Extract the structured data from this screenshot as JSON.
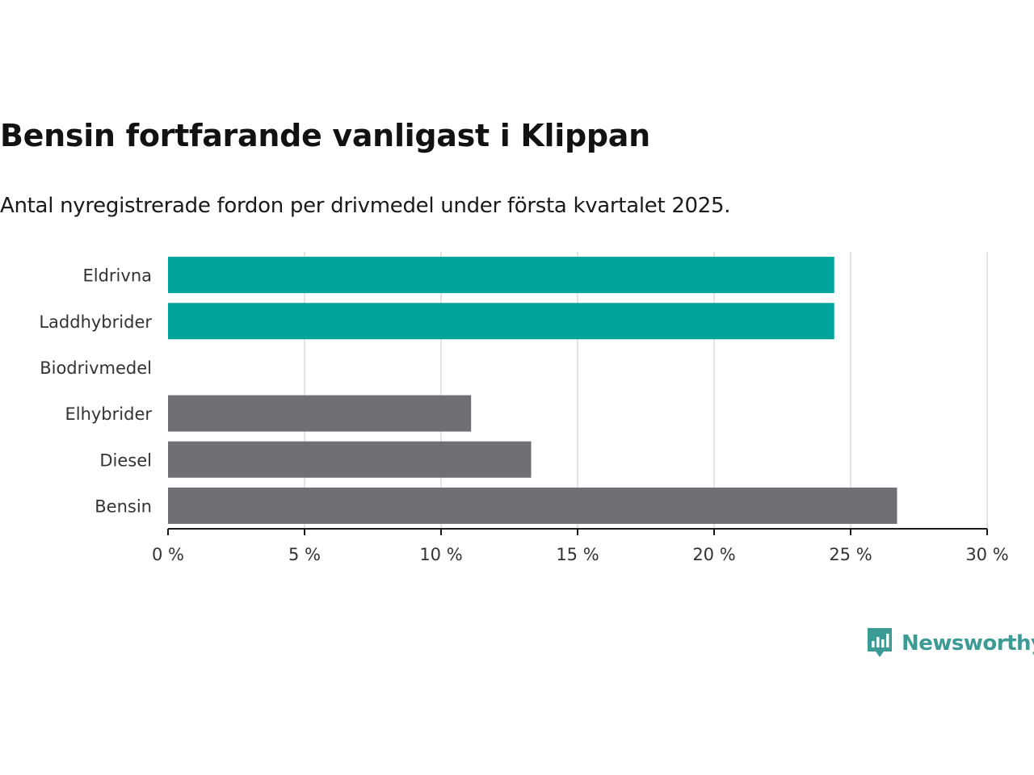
{
  "title": "Bensin fortfarande vanligast i Klippan",
  "subtitle": "Antal nyregistrerade fordon per drivmedel under första kvartalet 2025.",
  "colors": {
    "highlight": "#00a49a",
    "neutral": "#706f75",
    "grid": "#dcdcdc",
    "axis": "#1a1a1a",
    "brand": "#3d9b95"
  },
  "brand": {
    "name": "Newsworthy",
    "icon": "newsworthy-chart-bubble-icon"
  },
  "chart_data": {
    "type": "bar",
    "orientation": "horizontal",
    "categories": [
      "Eldrivna",
      "Laddhybrider",
      "Biodrivmedel",
      "Elhybrider",
      "Diesel",
      "Bensin"
    ],
    "values": [
      24.4,
      24.4,
      0,
      11.1,
      13.3,
      26.7
    ],
    "highlighted": [
      true,
      true,
      true,
      false,
      false,
      false
    ],
    "xlim": [
      0,
      30
    ],
    "xticks": [
      0,
      5,
      10,
      15,
      20,
      25,
      30
    ],
    "xtick_labels": [
      "0 %",
      "5 %",
      "10 %",
      "15 %",
      "20 %",
      "25 %",
      "30 %"
    ],
    "grid": true
  }
}
